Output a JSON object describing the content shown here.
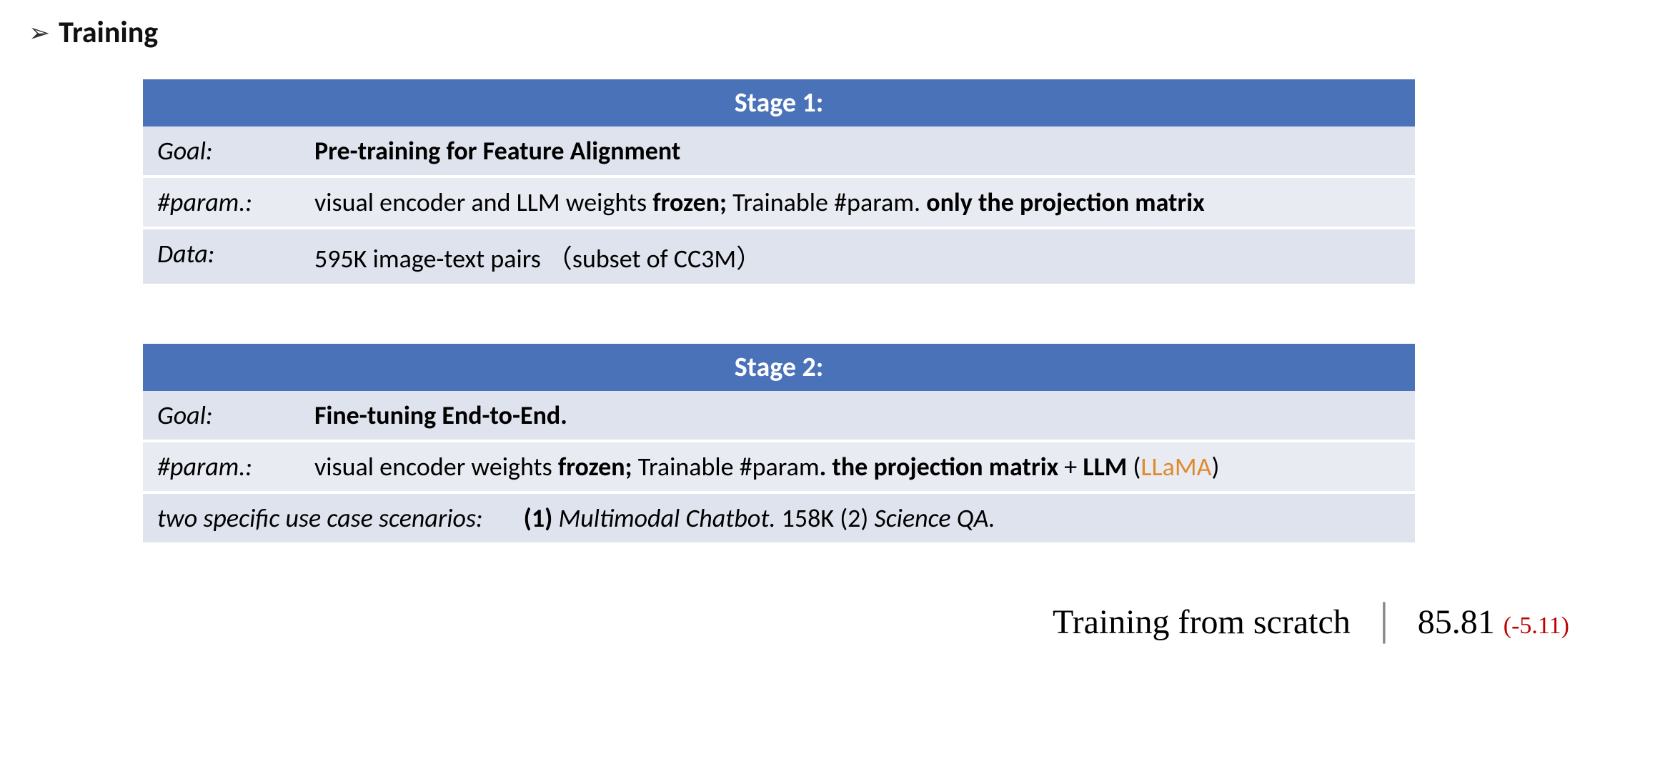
{
  "title": "Training",
  "colors": {
    "header_bg": "#4a72b8",
    "header_text": "#ffffff",
    "row_bg_a": "#dfe3ed",
    "row_bg_b": "#e8ebf2",
    "accent_orange": "#e08a2f",
    "footer_delta": "#c00000"
  },
  "stage1": {
    "header": "Stage 1:",
    "goal_label": "Goal:",
    "goal_value": "Pre-training for Feature Alignment",
    "param_label": "#param.:",
    "param_seg1": "visual encoder and LLM weights ",
    "param_seg2_bold": "frozen;",
    "param_seg3": "  Trainable #param. ",
    "param_seg4_bold": "only the projection matrix",
    "data_label": "Data:",
    "data_value": "595K image-text pairs  （subset of CC3M）"
  },
  "stage2": {
    "header": "Stage 2:",
    "goal_label": "Goal:",
    "goal_value": "Fine-tuning End-to-End.",
    "param_label": "#param.:",
    "param_seg1": "visual encoder weights ",
    "param_seg2_bold": "frozen;",
    "param_seg3": "  Trainable #param",
    "param_seg4_bold": ". the projection matrix",
    "param_seg5": " + ",
    "param_seg6_bold": "LLM",
    "param_seg7": " (",
    "param_seg8_orange": "LLaMA",
    "param_seg9": ")",
    "scen_label": "two specific use case scenarios:",
    "scen_seg1_bold": "(1)",
    "scen_seg2_italic": " Multimodal Chatbot.",
    "scen_seg3": "  158K   ",
    "scen_seg4": "(2) ",
    "scen_seg5_italic": "Science QA."
  },
  "footer": {
    "text": "Training from scratch",
    "value": "85.81",
    "delta": "(-5.11)"
  }
}
